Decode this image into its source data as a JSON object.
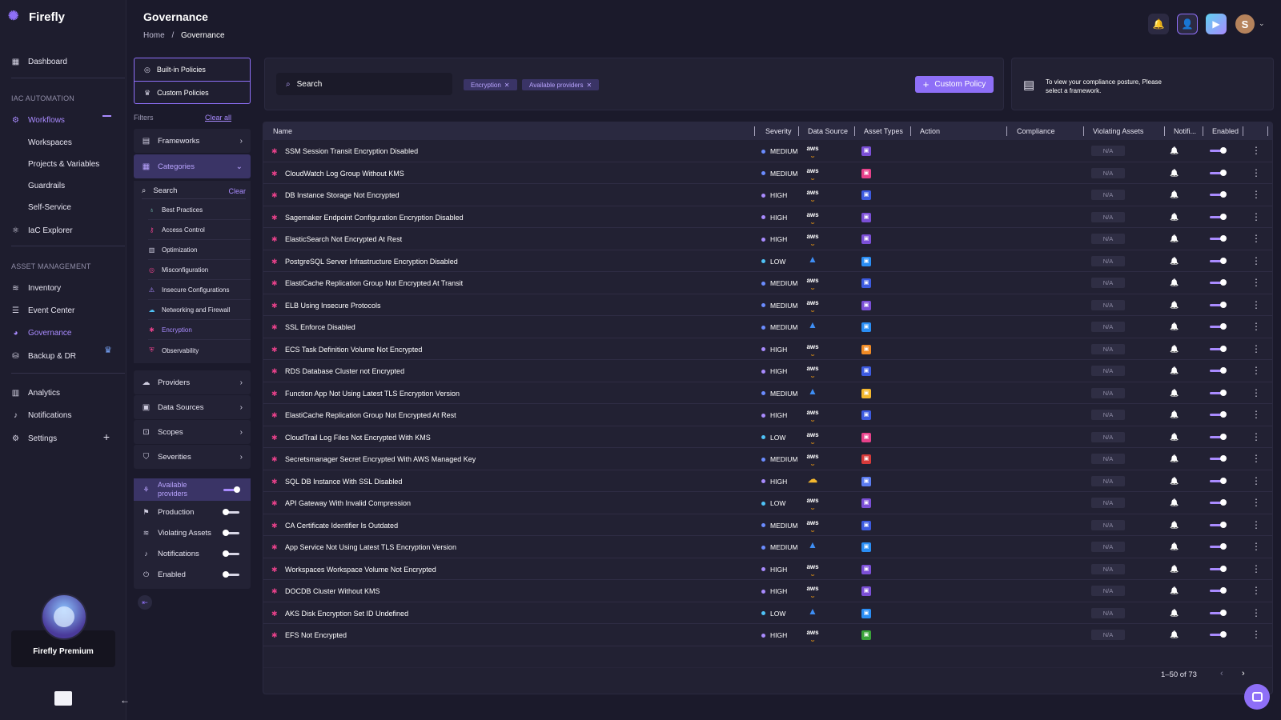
{
  "app": {
    "name": "Firefly"
  },
  "header": {
    "title": "Governance",
    "breadcrumb": {
      "home": "Home",
      "sep": "/",
      "current": "Governance"
    },
    "avatar_initial": "S"
  },
  "sidebar": {
    "dashboard": "Dashboard",
    "iac_section": "IAC AUTOMATION",
    "workflows": "Workflows",
    "workflows_sub": [
      "Workspaces",
      "Projects & Variables",
      "Guardrails",
      "Self-Service"
    ],
    "iac_explorer": "IaC Explorer",
    "asset_section": "ASSET MANAGEMENT",
    "inventory": "Inventory",
    "event_center": "Event Center",
    "governance": "Governance",
    "backup": "Backup & DR",
    "analytics": "Analytics",
    "notifications": "Notifications",
    "settings": "Settings",
    "premium": "Firefly Premium"
  },
  "filters": {
    "builtin": "Built-in Policies",
    "custom": "Custom Policies",
    "label": "Filters",
    "clear_all": "Clear all",
    "frameworks": "Frameworks",
    "categories": "Categories",
    "cat_search": "Search",
    "cat_clear": "Clear",
    "category_items": [
      "Best Practices",
      "Access Control",
      "Optimization",
      "Misconfiguration",
      "Insecure Configurations",
      "Networking and Firewall",
      "Encryption",
      "Observability"
    ],
    "providers": "Providers",
    "data_sources": "Data Sources",
    "scopes": "Scopes",
    "severities": "Severities",
    "available_providers": "Available providers",
    "production": "Production",
    "violating_assets": "Violating Assets",
    "notifications": "Notifications",
    "enabled": "Enabled"
  },
  "toolbar": {
    "search_placeholder": "Search",
    "chips": [
      "Encryption",
      "Available providers"
    ],
    "custom_policy": "Custom Policy",
    "compliance_msg": "To view your compliance posture, Please select a framework."
  },
  "table": {
    "columns": [
      "Name",
      "Severity",
      "Data Source",
      "Asset Types",
      "Action",
      "Compliance",
      "Violating Assets",
      "Notifi...",
      "Enabled"
    ],
    "na": "N/A",
    "rows": [
      {
        "name": "SSM Session Transit Encryption Disabled",
        "severity": "MEDIUM",
        "source": "aws",
        "asset_color": "#7b4fd6"
      },
      {
        "name": "CloudWatch Log Group Without KMS",
        "severity": "MEDIUM",
        "source": "aws",
        "asset_color": "#e7418a"
      },
      {
        "name": "DB Instance Storage Not Encrypted",
        "severity": "HIGH",
        "source": "aws",
        "asset_color": "#3d5be0"
      },
      {
        "name": "Sagemaker Endpoint Configuration Encryption Disabled",
        "severity": "HIGH",
        "source": "aws",
        "asset_color": "#7b4fd6"
      },
      {
        "name": "ElasticSearch Not Encrypted At Rest",
        "severity": "HIGH",
        "source": "aws",
        "asset_color": "#7b4fd6"
      },
      {
        "name": "PostgreSQL Server Infrastructure Encryption Disabled",
        "severity": "LOW",
        "source": "azure",
        "asset_color": "#2a8ef5"
      },
      {
        "name": "ElastiCache Replication Group Not Encrypted At Transit",
        "severity": "MEDIUM",
        "source": "aws",
        "asset_color": "#3d5be0"
      },
      {
        "name": "ELB Using Insecure Protocols",
        "severity": "MEDIUM",
        "source": "aws",
        "asset_color": "#7b4fd6"
      },
      {
        "name": "SSL Enforce Disabled",
        "severity": "MEDIUM",
        "source": "azure",
        "asset_color": "#2a8ef5"
      },
      {
        "name": "ECS Task Definition Volume Not Encrypted",
        "severity": "HIGH",
        "source": "aws",
        "asset_color": "#f08a24"
      },
      {
        "name": "RDS Database Cluster not Encrypted",
        "severity": "HIGH",
        "source": "aws",
        "asset_color": "#3d5be0"
      },
      {
        "name": "Function App Not Using Latest TLS Encryption Version",
        "severity": "MEDIUM",
        "source": "azure",
        "asset_color": "#f5b82e"
      },
      {
        "name": "ElastiCache Replication Group Not Encrypted At Rest",
        "severity": "HIGH",
        "source": "aws",
        "asset_color": "#3d5be0"
      },
      {
        "name": "CloudTrail Log Files Not Encrypted With KMS",
        "severity": "LOW",
        "source": "aws",
        "asset_color": "#e7418a"
      },
      {
        "name": "Secretsmanager Secret Encrypted With AWS Managed Key",
        "severity": "MEDIUM",
        "source": "aws",
        "asset_color": "#d63a3a"
      },
      {
        "name": "SQL DB Instance With SSL Disabled",
        "severity": "HIGH",
        "source": "gcp",
        "asset_color": "#5b7cf0"
      },
      {
        "name": "API Gateway With Invalid Compression",
        "severity": "LOW",
        "source": "aws",
        "asset_color": "#7b4fd6"
      },
      {
        "name": "CA Certificate Identifier Is Outdated",
        "severity": "MEDIUM",
        "source": "aws",
        "asset_color": "#3d5be0"
      },
      {
        "name": "App Service Not Using Latest TLS Encryption Version",
        "severity": "MEDIUM",
        "source": "azure",
        "asset_color": "#2a8ef5"
      },
      {
        "name": "Workspaces Workspace Volume Not Encrypted",
        "severity": "HIGH",
        "source": "aws",
        "asset_color": "#7b4fd6"
      },
      {
        "name": "DOCDB Cluster Without KMS",
        "severity": "HIGH",
        "source": "aws",
        "asset_color": "#7b4fd6"
      },
      {
        "name": "AKS Disk Encryption Set ID Undefined",
        "severity": "LOW",
        "source": "azure",
        "asset_color": "#2a8ef5"
      },
      {
        "name": "EFS Not Encrypted",
        "severity": "HIGH",
        "source": "aws",
        "asset_color": "#3aa33a"
      }
    ]
  },
  "severity_colors": {
    "HIGH": "#a98bff",
    "MEDIUM": "#6b8cff",
    "LOW": "#4fc3f7"
  },
  "pagination": {
    "label": "1–50 of 73"
  }
}
